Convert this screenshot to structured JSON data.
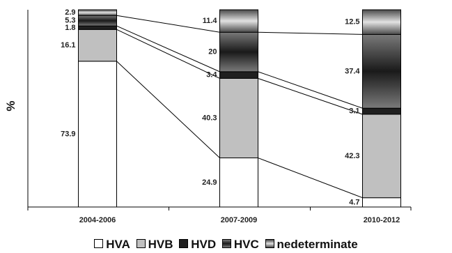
{
  "chart_data": {
    "type": "stacked_bar",
    "ylabel": "%",
    "ylim": [
      0,
      100
    ],
    "categories": [
      "2004-2006",
      "2007-2009",
      "2010-2012"
    ],
    "series": [
      {
        "name": "HVA",
        "values": [
          73.9,
          24.9,
          4.7
        ],
        "fill": "solid",
        "color": "#ffffff"
      },
      {
        "name": "HVB",
        "values": [
          16.1,
          40.3,
          42.3
        ],
        "fill": "solid",
        "color": "#c0c0c0"
      },
      {
        "name": "HVD",
        "values": [
          1.8,
          3.4,
          3.1
        ],
        "fill": "solid",
        "color": "#1f1f1f"
      },
      {
        "name": "HVC",
        "values": [
          5.3,
          20,
          37.4
        ],
        "fill": "gradient",
        "color": "#2a2a2a"
      },
      {
        "name": "nedeterminate",
        "values": [
          2.9,
          11.4,
          12.5
        ],
        "fill": "gradient",
        "color": "#9a9a9a"
      }
    ],
    "data_labels": [
      [
        "73.9",
        "16.1",
        "1.8",
        "5.3",
        "2.9"
      ],
      [
        "24.9",
        "40.3",
        "3.4",
        "20",
        "11.4"
      ],
      [
        "4.7",
        "42.3",
        "3.1",
        "37.4",
        "12.5"
      ]
    ],
    "legend_position": "bottom",
    "connector_lines": true
  }
}
